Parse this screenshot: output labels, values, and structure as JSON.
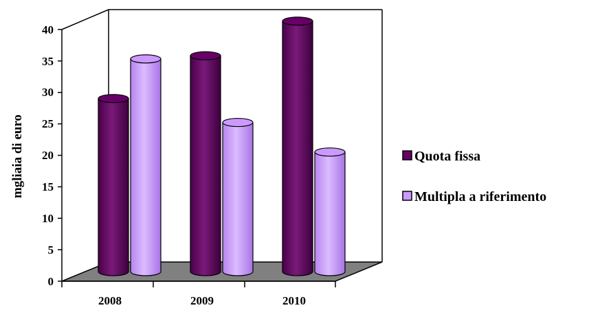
{
  "chart_data": {
    "type": "bar",
    "style": "3d-cylinder",
    "categories": [
      "2008",
      "2009",
      "2010"
    ],
    "series": [
      {
        "name": "Quota fissa",
        "values": [
          27.5,
          34.3,
          39.8
        ],
        "color": "#660066"
      },
      {
        "name": "Multipla a riferimento",
        "values": [
          33.8,
          23.7,
          19.0
        ],
        "color": "#CC99FF"
      }
    ],
    "ylabel": "mgliaia di euro",
    "xlabel": "",
    "ylim": [
      0,
      40
    ],
    "yticks": [
      "0",
      "5",
      "10",
      "15",
      "20",
      "25",
      "30",
      "35",
      "40"
    ],
    "grid": false,
    "legend_position": "right",
    "floor_color": "#808080"
  }
}
